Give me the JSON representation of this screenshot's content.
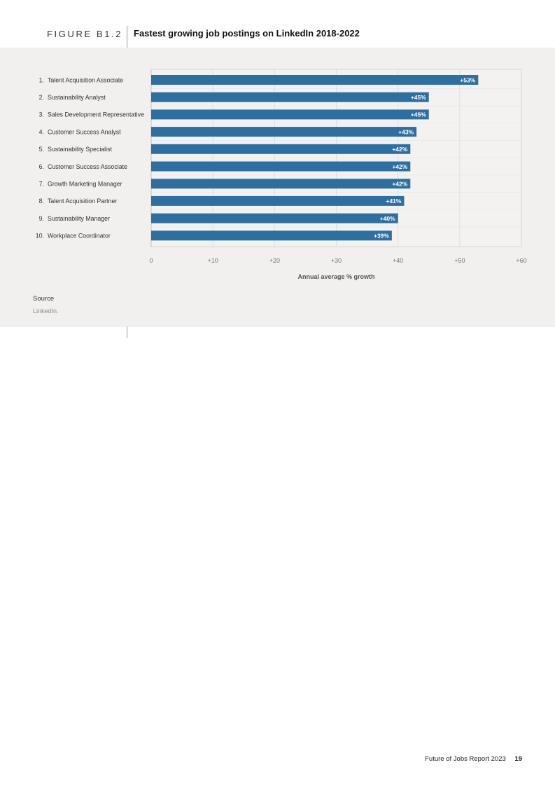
{
  "header": {
    "figure_label": "FIGURE B1.2",
    "title": "Fastest growing job postings on LinkedIn 2018-2022"
  },
  "source": {
    "label": "Source",
    "text": "LinkedIn."
  },
  "footer": {
    "report_name": "Future of Jobs Report 2023",
    "page_number": "19"
  },
  "colors": {
    "bar": "#2e6fa1",
    "panel_background": "#f1f0ee",
    "grid": "#d9d9d9"
  },
  "chart_data": {
    "type": "bar",
    "orientation": "horizontal",
    "title": "Fastest growing job postings on LinkedIn 2018-2022",
    "xlabel": "Annual average % growth",
    "ylabel": "",
    "xlim": [
      0,
      60
    ],
    "grid": true,
    "categories": [
      "Talent Acquisition Associate",
      "Sustainability Analyst",
      "Sales Development Representative",
      "Customer Success Analyst",
      "Sustainability Specialist",
      "Customer Success Associate",
      "Growth Marketing Manager",
      "Talent Acquisition Partner",
      "Sustainability Manager",
      "Workplace Coordinator"
    ],
    "ranks": [
      "1.",
      "2.",
      "3.",
      "4.",
      "5.",
      "6.",
      "7.",
      "8.",
      "9.",
      "10."
    ],
    "values": [
      53,
      45,
      45,
      43,
      42,
      42,
      42,
      41,
      40,
      39
    ],
    "value_labels": [
      "+53%",
      "+45%",
      "+45%",
      "+43%",
      "+42%",
      "+42%",
      "+42%",
      "+41%",
      "+40%",
      "+39%"
    ],
    "x_ticks": [
      0,
      10,
      20,
      30,
      40,
      50,
      60
    ],
    "x_tick_labels": [
      "0",
      "+10",
      "+20",
      "+30",
      "+40",
      "+50",
      "+60"
    ]
  }
}
